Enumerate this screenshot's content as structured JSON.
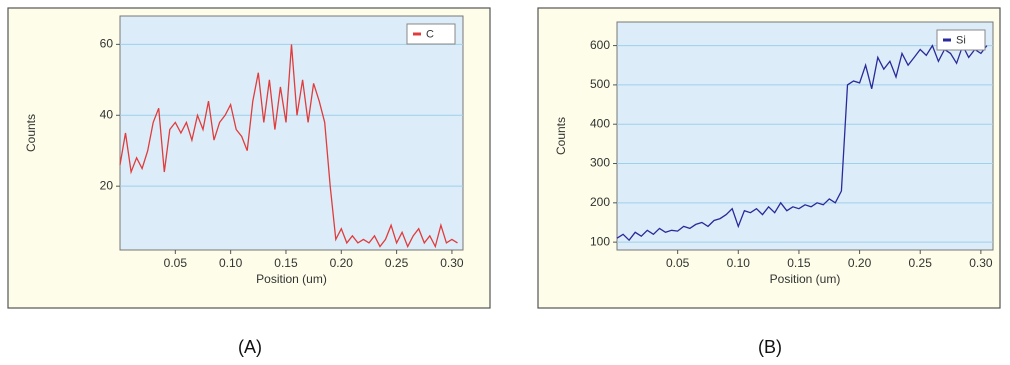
{
  "chart_data": [
    {
      "type": "line",
      "caption": "(A)",
      "xlabel": "Position (um)",
      "ylabel": "Counts",
      "x": [
        0,
        0.005,
        0.01,
        0.015,
        0.02,
        0.025,
        0.03,
        0.035,
        0.04,
        0.045,
        0.05,
        0.055,
        0.06,
        0.065,
        0.07,
        0.075,
        0.08,
        0.085,
        0.09,
        0.095,
        0.1,
        0.105,
        0.11,
        0.115,
        0.12,
        0.125,
        0.13,
        0.135,
        0.14,
        0.145,
        0.15,
        0.155,
        0.16,
        0.165,
        0.17,
        0.175,
        0.18,
        0.185,
        0.19,
        0.195,
        0.2,
        0.205,
        0.21,
        0.215,
        0.22,
        0.225,
        0.23,
        0.235,
        0.24,
        0.245,
        0.25,
        0.255,
        0.26,
        0.265,
        0.27,
        0.275,
        0.28,
        0.285,
        0.29,
        0.295,
        0.3,
        0.305
      ],
      "series": [
        {
          "name": "C",
          "color": "#e03c3c",
          "values": [
            26,
            35,
            24,
            28,
            25,
            30,
            38,
            42,
            24,
            36,
            38,
            35,
            38,
            33,
            40,
            36,
            44,
            33,
            38,
            40,
            43,
            36,
            34,
            30,
            44,
            52,
            38,
            50,
            36,
            48,
            38,
            60,
            40,
            50,
            38,
            49,
            44,
            38,
            20,
            5,
            8,
            4,
            6,
            4,
            5,
            4,
            6,
            3,
            5,
            9,
            4,
            7,
            3,
            6,
            8,
            4,
            6,
            3,
            9,
            4,
            5,
            4
          ]
        }
      ],
      "xlim": [
        0,
        0.31
      ],
      "ylim": [
        2,
        68
      ],
      "xticks": [
        {
          "value": 0.05,
          "label": "0.05"
        },
        {
          "value": 0.1,
          "label": "0.10"
        },
        {
          "value": 0.15,
          "label": "0.15"
        },
        {
          "value": 0.2,
          "label": "0.20"
        },
        {
          "value": 0.25,
          "label": "0.25"
        },
        {
          "value": 0.3,
          "label": "0.30"
        }
      ],
      "yticks": [
        20,
        40,
        60
      ],
      "grid": true,
      "legend": "upper right"
    },
    {
      "type": "line",
      "caption": "(B)",
      "xlabel": "Position (um)",
      "ylabel": "Counts",
      "x": [
        0,
        0.005,
        0.01,
        0.015,
        0.02,
        0.025,
        0.03,
        0.035,
        0.04,
        0.045,
        0.05,
        0.055,
        0.06,
        0.065,
        0.07,
        0.075,
        0.08,
        0.085,
        0.09,
        0.095,
        0.1,
        0.105,
        0.11,
        0.115,
        0.12,
        0.125,
        0.13,
        0.135,
        0.14,
        0.145,
        0.15,
        0.155,
        0.16,
        0.165,
        0.17,
        0.175,
        0.18,
        0.185,
        0.19,
        0.195,
        0.2,
        0.205,
        0.21,
        0.215,
        0.22,
        0.225,
        0.23,
        0.235,
        0.24,
        0.245,
        0.25,
        0.255,
        0.26,
        0.265,
        0.27,
        0.275,
        0.28,
        0.285,
        0.29,
        0.295,
        0.3,
        0.305
      ],
      "series": [
        {
          "name": "Si",
          "color": "#2a2a9a",
          "values": [
            110,
            120,
            105,
            125,
            115,
            130,
            120,
            135,
            125,
            130,
            128,
            140,
            135,
            145,
            150,
            140,
            155,
            160,
            170,
            185,
            140,
            180,
            175,
            185,
            170,
            190,
            175,
            200,
            180,
            190,
            185,
            195,
            190,
            200,
            195,
            210,
            200,
            230,
            500,
            510,
            505,
            550,
            490,
            570,
            540,
            560,
            520,
            580,
            550,
            570,
            590,
            575,
            600,
            560,
            590,
            580,
            555,
            600,
            570,
            590,
            580,
            600
          ]
        }
      ],
      "xlim": [
        0,
        0.31
      ],
      "ylim": [
        80,
        660
      ],
      "xticks": [
        {
          "value": 0.05,
          "label": "0.05"
        },
        {
          "value": 0.1,
          "label": "0.10"
        },
        {
          "value": 0.15,
          "label": "0.15"
        },
        {
          "value": 0.2,
          "label": "0.20"
        },
        {
          "value": 0.25,
          "label": "0.25"
        },
        {
          "value": 0.3,
          "label": "0.30"
        }
      ],
      "yticks": [
        100,
        200,
        300,
        400,
        500,
        600
      ],
      "grid": true,
      "legend": "upper right"
    }
  ]
}
